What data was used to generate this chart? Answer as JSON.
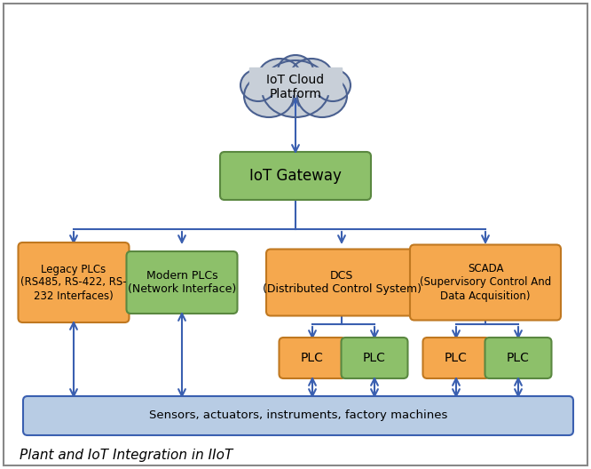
{
  "title": "Plant and IoT Integration in IIoT",
  "background_color": "#ffffff",
  "border_color": "#888888",
  "arrow_color": "#3a5fb0",
  "cloud_fill": "#c8cfd8",
  "cloud_border": "#4a6090",
  "gateway_fill": "#8dc06a",
  "gateway_border": "#5a8840",
  "gateway_text": "IoT Gateway",
  "orange_fill": "#f5a84e",
  "orange_border": "#c07820",
  "green_fill": "#8dc06a",
  "green_border": "#5a8840",
  "blue_bar_fill": "#b8cce4",
  "blue_bar_border": "#3a5fb0",
  "sensors_text": "Sensors, actuators, instruments, factory machines",
  "cloud_text": "IoT Cloud\nPlatform",
  "legacy_text": "Legacy PLCs\n(RS485, RS-422, RS-\n232 Interfaces)",
  "modern_text": "Modern PLCs\n(Network Interface)",
  "dcs_text": "DCS\n(Distributed Control System)",
  "scada_text": "SCADA\n(Supervisory Control And\nData Acquisition)",
  "fig_width": 6.66,
  "fig_height": 5.28,
  "dpi": 100
}
